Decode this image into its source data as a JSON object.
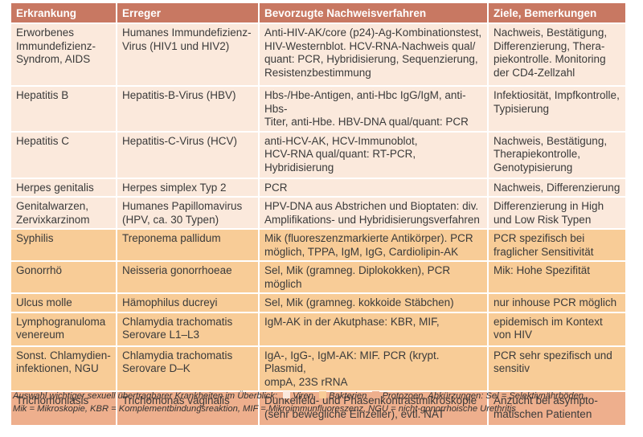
{
  "table": {
    "headers": [
      "Erkrankung",
      "Erreger",
      "Bevorzugte Nachweisverfahren",
      "Ziele, Bemerkungen"
    ],
    "rows": [
      {
        "cells": [
          "Erworbenes\nImmundefizienz-\nSyndrom, AIDS",
          "Humanes Immundefizienz-\nVirus (HIV1 und HIV2)",
          "Anti-HIV-AK/core (p24)-Ag-Kombinationstest,\nHIV-Westernblot. HCV-RNA-Nachweis qual/\nquant: PCR, Hybridisierung, Sequenzierung,\nResistenzbestimmung",
          "Nachweis, Bestätigung,\nDifferenzierung, Thera-\npiekontrolle. Monitoring\nder CD4-Zellzahl"
        ]
      },
      {
        "cells": [
          "Hepatitis B",
          "Hepatitis-B-Virus (HBV)",
          "Hbs-/Hbe-Antigen, anti-Hbc IgG/IgM, anti-Hbs-\nTiter, anti-Hbe. HBV-DNA qual/quant: PCR",
          "Infektiosität, Impfkontrolle,\nTypisierung"
        ]
      },
      {
        "cells": [
          "Hepatitis C",
          "Hepatitis-C-Virus (HCV)",
          "anti-HCV-AK, HCV-Immunoblot,\nHCV-RNA qual/quant: RT-PCR, Hybridisierung",
          "Nachweis, Bestätigung,\nTherapiekontrolle,\nGenotypisierung"
        ]
      },
      {
        "cells": [
          "Herpes genitalis",
          "Herpes simplex Typ 2",
          "PCR",
          "Nachweis, Differenzierung"
        ]
      },
      {
        "cells": [
          "Genitalwarzen,\nZervixkarzinom",
          "Humanes Papillomavirus\n(HPV, ca. 30 Typen)",
          "HPV-DNA aus Abstrichen und Bioptaten: div.\nAmplifikations- und Hybridisierungsverfahren",
          "Differenzierung in High\nund Low Risk Typen"
        ]
      },
      {
        "cells": [
          "Syphilis",
          "Treponema pallidum",
          "Mik (fluoreszenzmarkierte Antikörper). PCR\nmöglich, TPPA, IgM, IgG, Cardiolipin-AK",
          "PCR spezifisch bei\nfraglicher Sensitivität"
        ]
      },
      {
        "cells": [
          "Gonorrhö",
          "Neisseria gonorrhoeae",
          "Sel, Mik (gramneg. Diplokokken), PCR möglich",
          "Mik: Hohe Spezifität"
        ]
      },
      {
        "cells": [
          "Ulcus molle",
          "Hämophilus ducreyi",
          "Sel, Mik (gramneg. kokkoide Stäbchen)",
          "nur inhouse PCR möglich"
        ]
      },
      {
        "cells": [
          "Lymphogranuloma\nvenereum",
          "Chlamydia trachomatis\nSerovare L1–L3",
          "IgM-AK in der Akutphase: KBR, MIF,",
          "epidemisch im Kontext\nvon HIV"
        ]
      },
      {
        "cells": [
          "Sonst. Chlamydien-\ninfektionen, NGU",
          "Chlamydia trachomatis\nSerovare D–K",
          "IgA-, IgG-, IgM-AK: MIF. PCR (krypt. Plasmid,\nompA, 23S rRNA",
          "PCR sehr spezifisch und\nsensitiv"
        ]
      },
      {
        "cells": [
          "Trichomoniasis",
          "Trichomonas vaginalis",
          "Dunkelfeld- und Phasenkontrastmikroskopie\n(sehr bewegliche Einzeller), evtl. NAT",
          "Anzucht bei asympto-\nmatischen Patienten"
        ]
      }
    ]
  },
  "caption": {
    "intro": "Auswahl wichtiger sexuell übertragbarer Krankheiten im Überblick:",
    "legend": [
      {
        "label": "Viren",
        "color": "#fbe9dc"
      },
      {
        "label": "Bakterien",
        "color": "#f8cc97"
      },
      {
        "label": "Protozoen.",
        "color": "#eeaf8d"
      }
    ],
    "abbr": "Abkürzungen: Sel = Selektivnährböden,",
    "line2": "Mik = Mikroskopie, KBR = Komplementbindungsreaktion, MIF = Mikroimmunfluoreszenz, NGU = nicht-gonorrhoische Urethritis"
  }
}
